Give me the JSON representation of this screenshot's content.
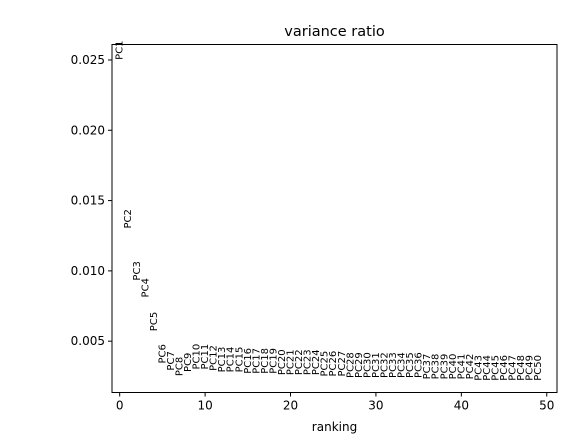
{
  "chart_data": {
    "type": "scatter",
    "title": "variance ratio",
    "xlabel": "ranking",
    "ylabel": "",
    "xlim": [
      -0.9,
      51.2
    ],
    "ylim": [
      0.00135,
      0.0261
    ],
    "xticks": [
      0,
      10,
      20,
      30,
      40,
      50
    ],
    "yticks": [
      0.005,
      0.01,
      0.015,
      0.02,
      0.025
    ],
    "ytick_labels": [
      "0.005",
      "0.010",
      "0.015",
      "0.020",
      "0.025"
    ],
    "grid": false,
    "marker": "text labels",
    "points": [
      {
        "x": 0,
        "y": 0.0257,
        "label": "PC1"
      },
      {
        "x": 1,
        "y": 0.0137,
        "label": "PC2"
      },
      {
        "x": 2,
        "y": 0.01,
        "label": "PC3"
      },
      {
        "x": 3,
        "y": 0.0088,
        "label": "PC4"
      },
      {
        "x": 4,
        "y": 0.0064,
        "label": "PC5"
      },
      {
        "x": 5,
        "y": 0.0041,
        "label": "PC6"
      },
      {
        "x": 6,
        "y": 0.0036,
        "label": "PC7"
      },
      {
        "x": 7,
        "y": 0.0032,
        "label": "PC8"
      },
      {
        "x": 8,
        "y": 0.0035,
        "label": "PC9"
      },
      {
        "x": 9,
        "y": 0.0039,
        "label": "PC10"
      },
      {
        "x": 10,
        "y": 0.0039,
        "label": "PC11"
      },
      {
        "x": 11,
        "y": 0.0038,
        "label": "PC12"
      },
      {
        "x": 12,
        "y": 0.0037,
        "label": "PC13"
      },
      {
        "x": 13,
        "y": 0.0037,
        "label": "PC14"
      },
      {
        "x": 14,
        "y": 0.0037,
        "label": "PC15"
      },
      {
        "x": 15,
        "y": 0.0036,
        "label": "PC16"
      },
      {
        "x": 16,
        "y": 0.0036,
        "label": "PC17"
      },
      {
        "x": 17,
        "y": 0.0036,
        "label": "PC18"
      },
      {
        "x": 18,
        "y": 0.0036,
        "label": "PC19"
      },
      {
        "x": 19,
        "y": 0.0035,
        "label": "PC20"
      },
      {
        "x": 20,
        "y": 0.0035,
        "label": "PC21"
      },
      {
        "x": 21,
        "y": 0.0035,
        "label": "PC22"
      },
      {
        "x": 22,
        "y": 0.0035,
        "label": "PC23"
      },
      {
        "x": 23,
        "y": 0.0035,
        "label": "PC24"
      },
      {
        "x": 24,
        "y": 0.0034,
        "label": "PC25"
      },
      {
        "x": 25,
        "y": 0.0034,
        "label": "PC26"
      },
      {
        "x": 26,
        "y": 0.0034,
        "label": "PC27"
      },
      {
        "x": 27,
        "y": 0.0033,
        "label": "PC28"
      },
      {
        "x": 28,
        "y": 0.0033,
        "label": "PC29"
      },
      {
        "x": 29,
        "y": 0.0033,
        "label": "PC30"
      },
      {
        "x": 30,
        "y": 0.0033,
        "label": "PC31"
      },
      {
        "x": 31,
        "y": 0.0033,
        "label": "PC32"
      },
      {
        "x": 32,
        "y": 0.0033,
        "label": "PC33"
      },
      {
        "x": 33,
        "y": 0.0033,
        "label": "PC34"
      },
      {
        "x": 34,
        "y": 0.0033,
        "label": "PC35"
      },
      {
        "x": 35,
        "y": 0.0033,
        "label": "PC36"
      },
      {
        "x": 36,
        "y": 0.0032,
        "label": "PC37"
      },
      {
        "x": 37,
        "y": 0.0032,
        "label": "PC38"
      },
      {
        "x": 38,
        "y": 0.0032,
        "label": "PC39"
      },
      {
        "x": 39,
        "y": 0.0032,
        "label": "PC40"
      },
      {
        "x": 40,
        "y": 0.0032,
        "label": "PC41"
      },
      {
        "x": 41,
        "y": 0.0032,
        "label": "PC42"
      },
      {
        "x": 42,
        "y": 0.0031,
        "label": "PC43"
      },
      {
        "x": 43,
        "y": 0.0031,
        "label": "PC44"
      },
      {
        "x": 44,
        "y": 0.0031,
        "label": "PC45"
      },
      {
        "x": 45,
        "y": 0.0031,
        "label": "PC46"
      },
      {
        "x": 46,
        "y": 0.0031,
        "label": "PC47"
      },
      {
        "x": 47,
        "y": 0.0031,
        "label": "PC48"
      },
      {
        "x": 48,
        "y": 0.0031,
        "label": "PC49"
      },
      {
        "x": 49,
        "y": 0.0031,
        "label": "PC50"
      }
    ]
  }
}
